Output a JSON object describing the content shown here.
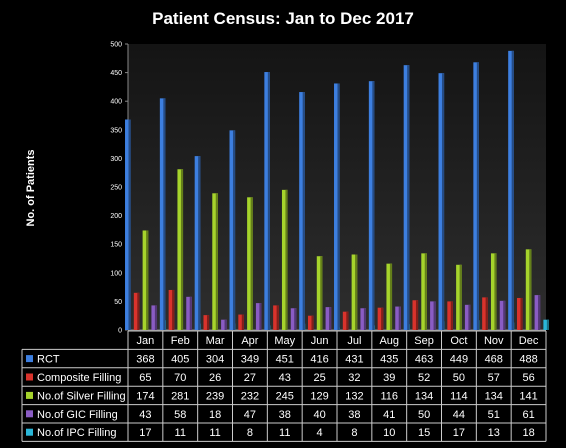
{
  "chart_data": {
    "type": "bar",
    "title": "Patient Census: Jan to Dec 2017",
    "xlabel": "",
    "ylabel": "No. of Patients",
    "ylim": [
      0,
      500
    ],
    "yticks": [
      "0",
      "50",
      "100",
      "150",
      "200",
      "250",
      "300",
      "350",
      "400",
      "450",
      "500"
    ],
    "grid": false,
    "legend": "data-table",
    "categories": [
      "Jan",
      "Feb",
      "Mar",
      "Apr",
      "May",
      "Jun",
      "Jul",
      "Aug",
      "Sep",
      "Oct",
      "Nov",
      "Dec"
    ],
    "series": [
      {
        "name": "RCT",
        "color": "#3d7fe0",
        "values": [
          368,
          405,
          304,
          349,
          451,
          416,
          431,
          435,
          463,
          449,
          468,
          488
        ]
      },
      {
        "name": "Composite Filling",
        "color": "#d9332c",
        "values": [
          65,
          70,
          26,
          27,
          43,
          25,
          32,
          39,
          52,
          50,
          57,
          56
        ]
      },
      {
        "name": "No.of Silver Filling",
        "color": "#a6d42c",
        "values": [
          174,
          281,
          239,
          232,
          245,
          129,
          132,
          116,
          134,
          114,
          134,
          141
        ]
      },
      {
        "name": "No.of GIC Filling",
        "color": "#8a5cc4",
        "values": [
          43,
          58,
          18,
          47,
          38,
          40,
          38,
          41,
          50,
          44,
          51,
          61
        ]
      },
      {
        "name": "No.of IPC Filling",
        "color": "#2ab7d9",
        "values": [
          17,
          11,
          11,
          8,
          11,
          4,
          8,
          10,
          15,
          17,
          13,
          18
        ]
      }
    ]
  }
}
